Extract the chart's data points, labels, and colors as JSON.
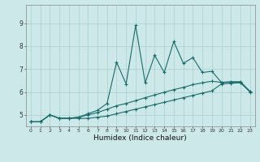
{
  "title": "",
  "xlabel": "Humidex (Indice chaleur)",
  "bg_color": "#cce8e8",
  "line_color": "#1a6b6b",
  "grid_color": "#aacfcf",
  "xlim": [
    -0.5,
    23.5
  ],
  "ylim": [
    4.5,
    9.8
  ],
  "yticks": [
    5,
    6,
    7,
    8,
    9
  ],
  "xticks": [
    0,
    1,
    2,
    3,
    4,
    5,
    6,
    7,
    8,
    9,
    10,
    11,
    12,
    13,
    14,
    15,
    16,
    17,
    18,
    19,
    20,
    21,
    22,
    23
  ],
  "series": [
    {
      "x": [
        0,
        1,
        2,
        3,
        4,
        5,
        6,
        7,
        8,
        9,
        10,
        11,
        12,
        13,
        14,
        15,
        16,
        17,
        18,
        19,
        20,
        21,
        22,
        23
      ],
      "y": [
        4.7,
        4.7,
        5.0,
        4.85,
        4.85,
        4.85,
        4.85,
        4.9,
        4.95,
        5.05,
        5.15,
        5.25,
        5.35,
        5.45,
        5.55,
        5.65,
        5.75,
        5.85,
        5.95,
        6.05,
        6.35,
        6.38,
        6.4,
        6.0
      ]
    },
    {
      "x": [
        0,
        1,
        2,
        3,
        4,
        5,
        6,
        7,
        8,
        9,
        10,
        11,
        12,
        13,
        14,
        15,
        16,
        17,
        18,
        19,
        20,
        21,
        22,
        23
      ],
      "y": [
        4.7,
        4.7,
        5.0,
        4.85,
        4.85,
        4.9,
        5.0,
        5.1,
        5.25,
        5.4,
        5.5,
        5.62,
        5.75,
        5.87,
        5.99,
        6.1,
        6.2,
        6.32,
        6.4,
        6.47,
        6.42,
        6.42,
        6.42,
        6.02
      ]
    },
    {
      "x": [
        0,
        1,
        2,
        3,
        4,
        5,
        6,
        7,
        8,
        9,
        10,
        11,
        12,
        13,
        14,
        15,
        16,
        17,
        18,
        19,
        20,
        21,
        22,
        23
      ],
      "y": [
        4.7,
        4.7,
        5.0,
        4.85,
        4.85,
        4.9,
        5.05,
        5.2,
        5.5,
        7.3,
        6.35,
        8.9,
        6.4,
        7.6,
        6.85,
        8.2,
        7.25,
        7.5,
        6.85,
        6.9,
        6.42,
        6.45,
        6.45,
        6.02
      ]
    }
  ]
}
